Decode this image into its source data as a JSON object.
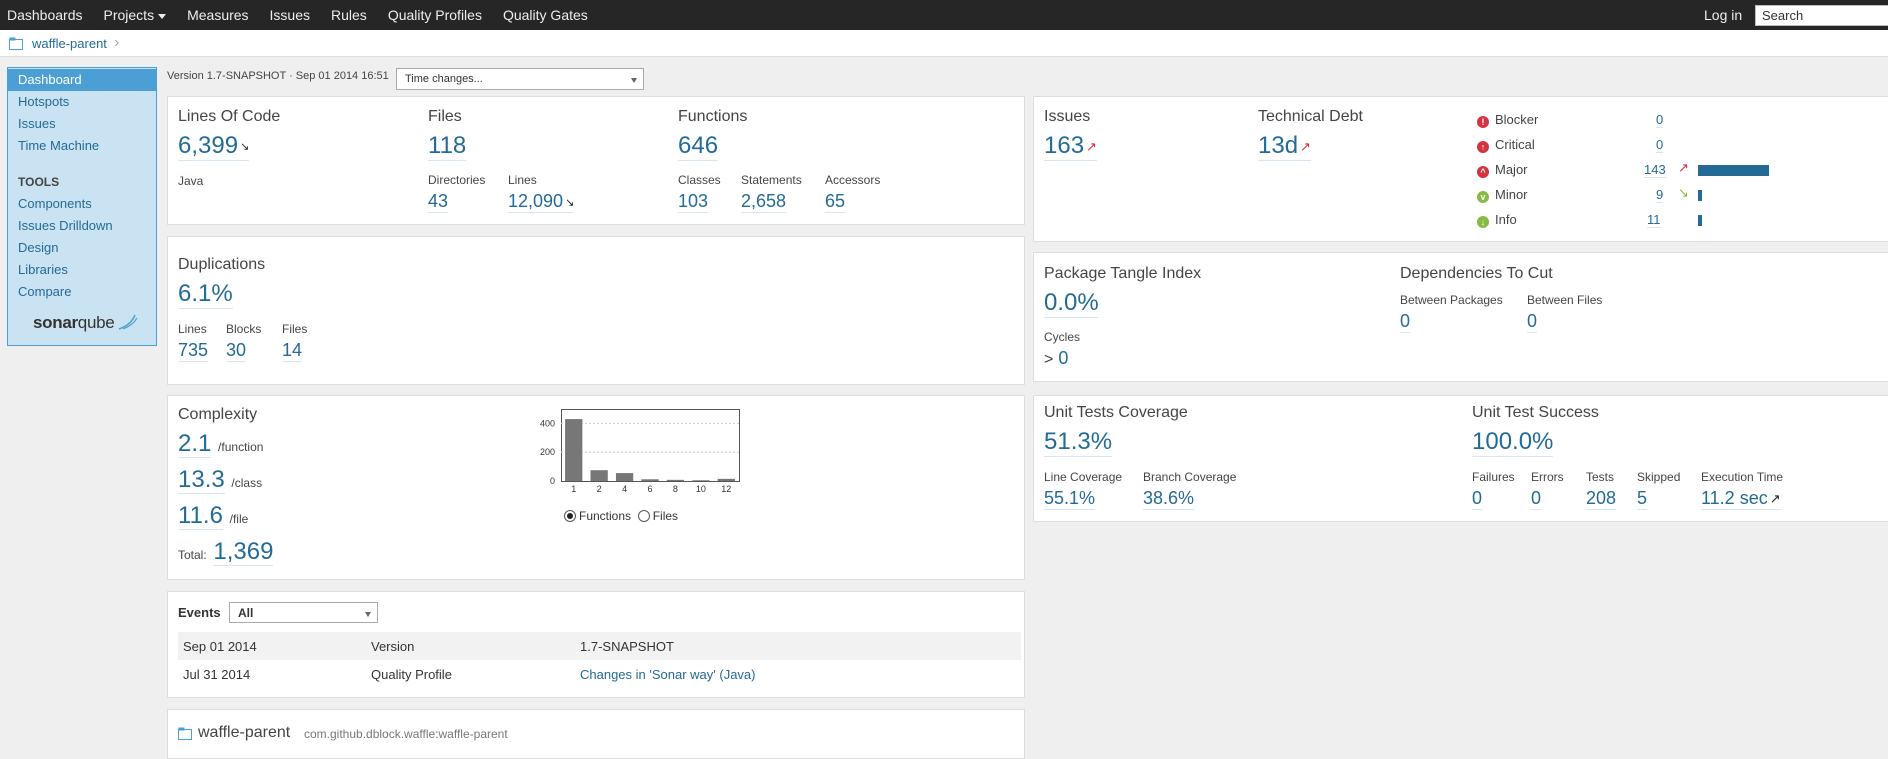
{
  "nav": {
    "items": [
      "Dashboards",
      "Projects",
      "Measures",
      "Issues",
      "Rules",
      "Quality Profiles",
      "Quality Gates"
    ],
    "login": "Log in",
    "search_value": "Search"
  },
  "breadcrumb": {
    "project": "waffle-parent"
  },
  "sidebar": {
    "items": [
      "Dashboard",
      "Hotspots",
      "Issues",
      "Time Machine"
    ],
    "tools_title": "TOOLS",
    "tools": [
      "Components",
      "Issues Drilldown",
      "Design",
      "Libraries",
      "Compare"
    ],
    "logo_a": "sonar",
    "logo_b": "qube"
  },
  "version_text": "Version 1.7-SNAPSHOT · Sep 01 2014 16:51",
  "time_changes": "Time changes...",
  "size": {
    "loc_title": "Lines Of Code",
    "loc": "6,399",
    "language": "Java",
    "files_title": "Files",
    "files": "118",
    "dirs_label": "Directories",
    "dirs": "43",
    "lines_label": "Lines",
    "lines": "12,090",
    "functions_title": "Functions",
    "functions": "646",
    "classes_label": "Classes",
    "classes": "103",
    "statements_label": "Statements",
    "statements": "2,658",
    "accessors_label": "Accessors",
    "accessors": "65"
  },
  "issues": {
    "issues_title": "Issues",
    "issues": "163",
    "debt_title": "Technical Debt",
    "debt": "13d",
    "severities": [
      {
        "name": "Blocker",
        "count": "0",
        "color": "#d4333f",
        "icon": "!"
      },
      {
        "name": "Critical",
        "count": "0",
        "color": "#d4333f",
        "icon": "↑"
      },
      {
        "name": "Major",
        "count": "143",
        "color": "#d4333f",
        "icon": "^"
      },
      {
        "name": "Minor",
        "count": "9",
        "color": "#85bb43",
        "icon": "v"
      },
      {
        "name": "Info",
        "count": "11",
        "color": "#85bb43",
        "icon": "↓"
      }
    ]
  },
  "duplications": {
    "title": "Duplications",
    "percent": "6.1%",
    "lines_label": "Lines",
    "lines": "735",
    "blocks_label": "Blocks",
    "blocks": "30",
    "files_label": "Files",
    "files": "14"
  },
  "design": {
    "tangle_title": "Package Tangle Index",
    "tangle": "0.0%",
    "cycles_label": "Cycles",
    "cycles_prefix": ">",
    "cycles": "0",
    "deps_title": "Dependencies To Cut",
    "between_packages_label": "Between Packages",
    "between_packages": "0",
    "between_files_label": "Between Files",
    "between_files": "0"
  },
  "complexity": {
    "title": "Complexity",
    "per_function": "2.1",
    "per_function_unit": "/function",
    "per_class": "13.3",
    "per_class_unit": "/class",
    "per_file": "11.6",
    "per_file_unit": "/file",
    "total_label": "Total:",
    "total": "1,369",
    "radio_functions": "Functions",
    "radio_files": "Files"
  },
  "chart_data": {
    "type": "bar",
    "categories": [
      "1",
      "2",
      "4",
      "6",
      "8",
      "10",
      "12"
    ],
    "values": [
      430,
      75,
      55,
      12,
      8,
      5,
      15
    ],
    "ylim": [
      0,
      500
    ],
    "yticks": [
      "0",
      "200",
      "400"
    ],
    "grid": true,
    "bar_color": "#777777"
  },
  "coverage": {
    "title": "Unit Tests Coverage",
    "coverage": "51.3%",
    "line_label": "Line Coverage",
    "line": "55.1%",
    "branch_label": "Branch Coverage",
    "branch": "38.6%"
  },
  "tests": {
    "title": "Unit Test Success",
    "success": "100.0%",
    "failures_label": "Failures",
    "failures": "0",
    "errors_label": "Errors",
    "errors": "0",
    "tests_label": "Tests",
    "tests": "208",
    "skipped_label": "Skipped",
    "skipped": "5",
    "exec_label": "Execution Time",
    "exec": "11.2 sec"
  },
  "events": {
    "title": "Events",
    "filter": "All",
    "rows": [
      {
        "date": "Sep 01 2014",
        "category": "Version",
        "description": "1.7-SNAPSHOT"
      },
      {
        "date": "Jul 31 2014",
        "category": "Quality Profile",
        "description": "Changes in 'Sonar way' (Java)"
      }
    ]
  },
  "project_widget": {
    "name": "waffle-parent",
    "key": "com.github.dblock.waffle:waffle-parent"
  }
}
